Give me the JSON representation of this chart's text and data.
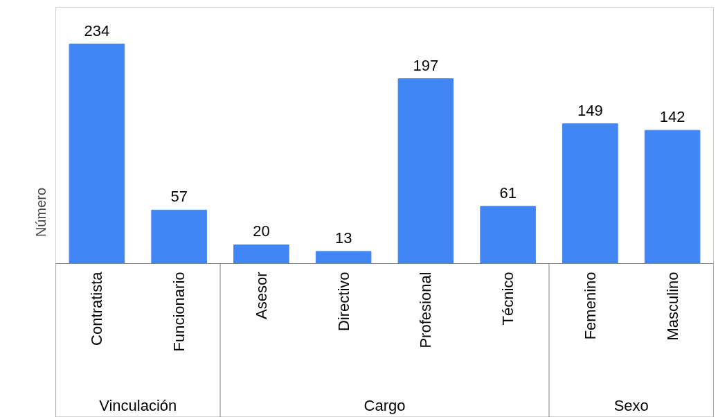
{
  "chart_data": {
    "type": "bar",
    "ylabel": "Número",
    "color": "#4285f4",
    "categories": [
      "Contratista",
      "Funcionario",
      "Asesor",
      "Directivo",
      "Profesional",
      "Técnico",
      "Femenino",
      "Masculino"
    ],
    "values": [
      234,
      57,
      20,
      13,
      197,
      61,
      149,
      142
    ],
    "data_labels": true,
    "grid": false,
    "annotations": [
      "Vinculación",
      "Cargo",
      "Sexo"
    ]
  }
}
